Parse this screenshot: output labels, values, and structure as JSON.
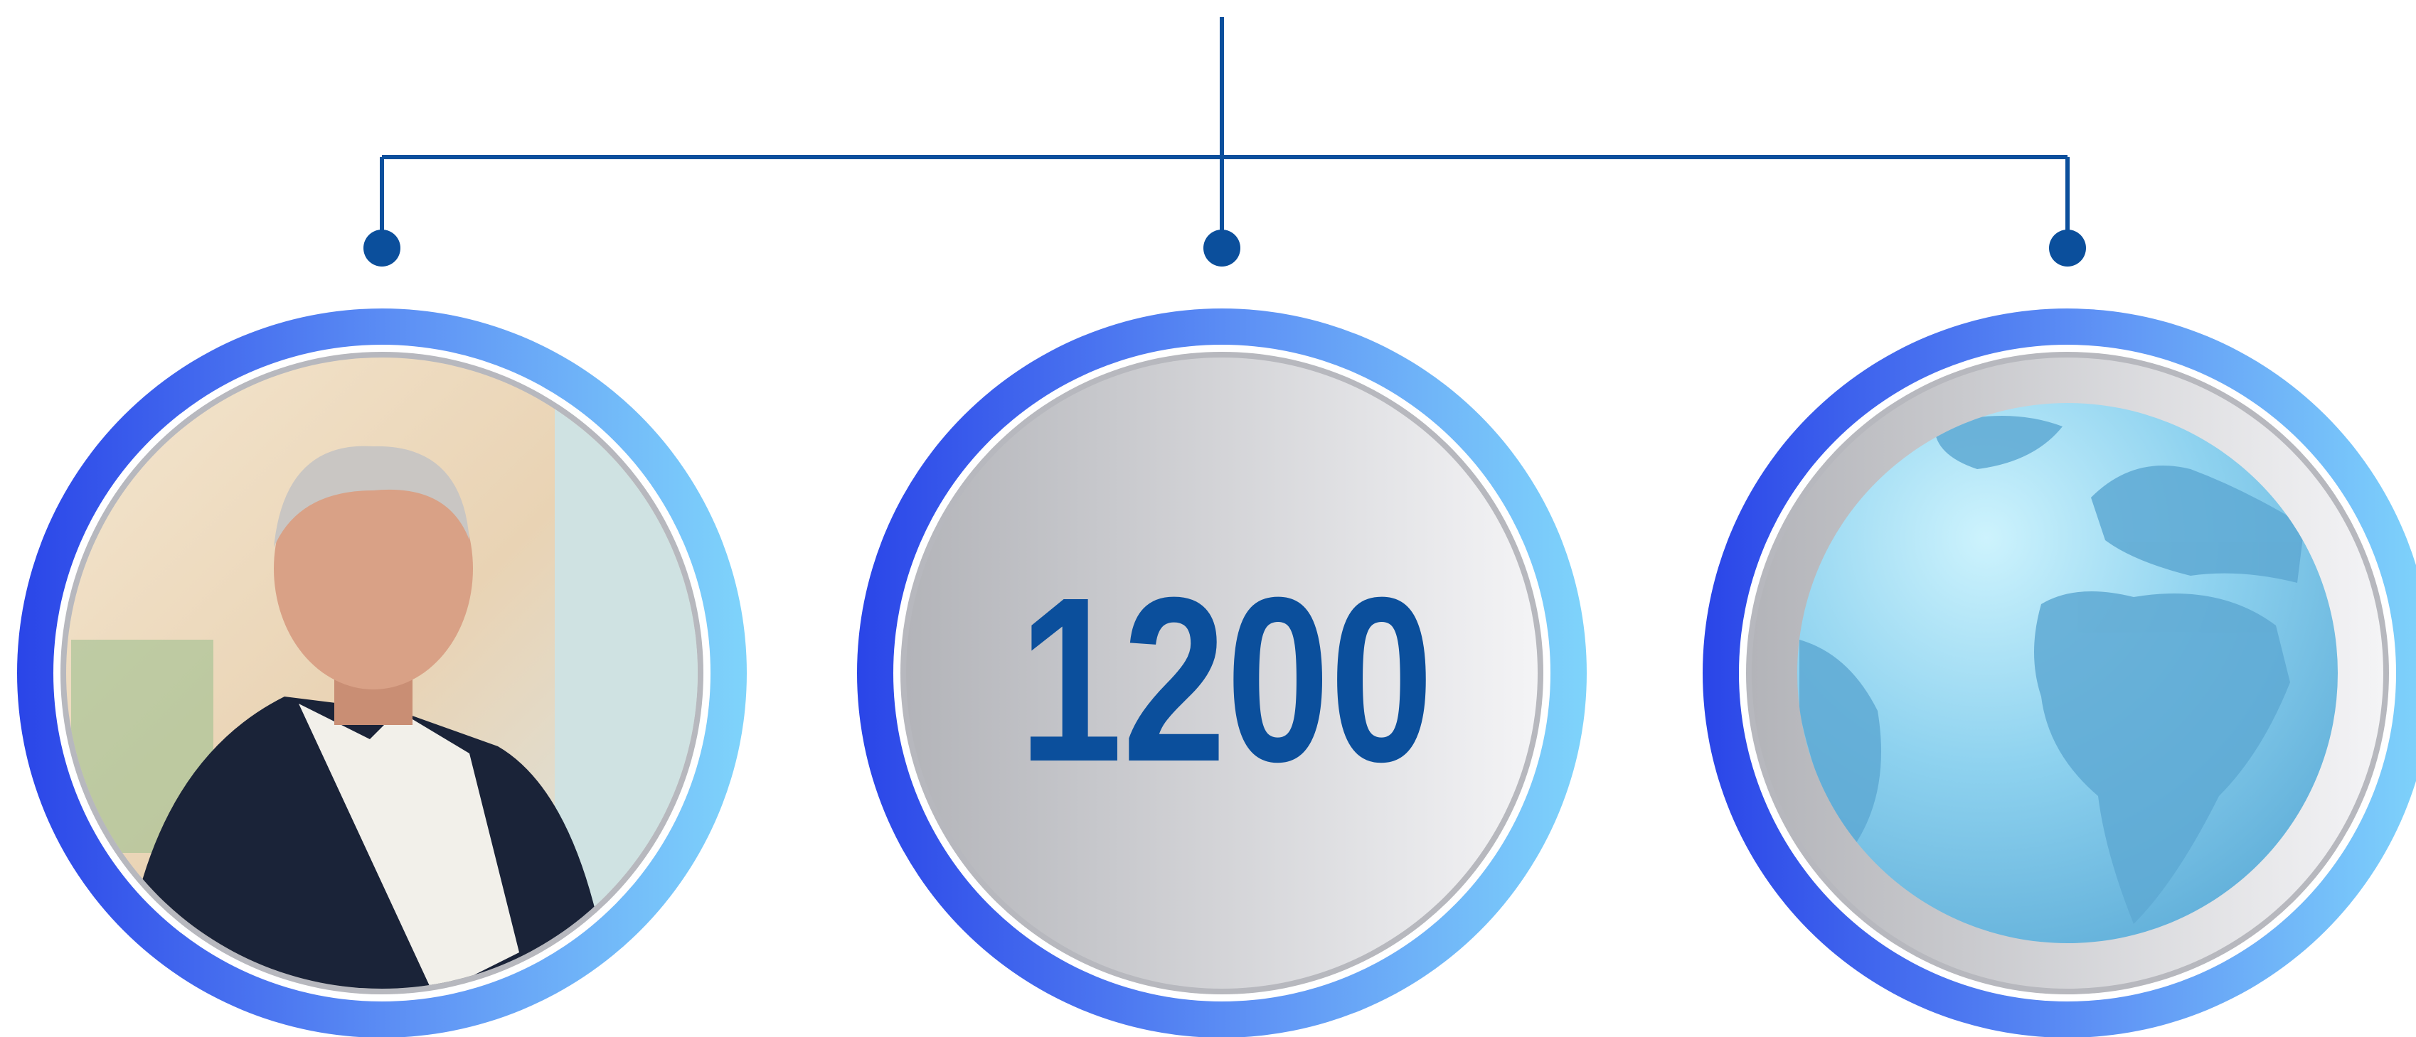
{
  "center_node": {
    "label": "1200"
  }
}
